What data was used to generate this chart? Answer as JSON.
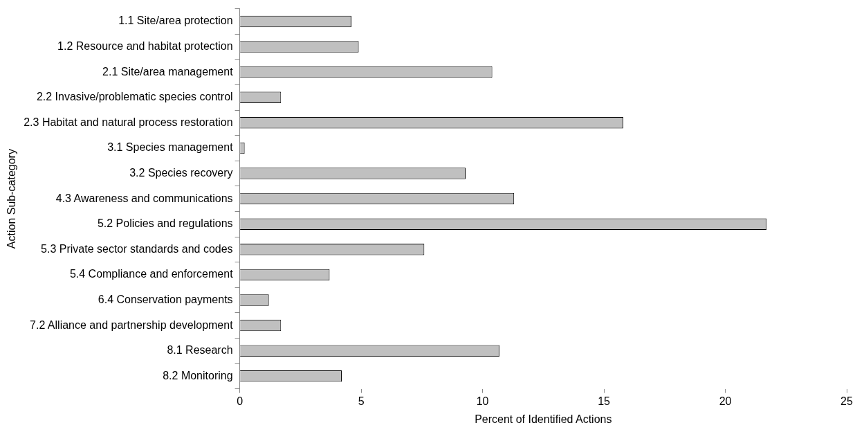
{
  "chart_data": {
    "type": "bar",
    "orientation": "horizontal",
    "xlabel": "Percent of Identified Actions",
    "ylabel": "Action Sub-category",
    "categories": [
      "1.1 Site/area protection",
      "1.2 Resource and habitat protection",
      "2.1 Site/area management",
      "2.2 Invasive/problematic species control",
      "2.3 Habitat and natural process restoration",
      "3.1 Species management",
      "3.2 Species recovery",
      "4.3 Awareness and communications",
      "5.2 Policies and regulations",
      "5.3 Private sector standards and codes",
      "5.4 Compliance and enforcement",
      "6.4 Conservation payments",
      "7.2 Alliance and partnership development",
      "8.1 Research",
      "8.2 Monitoring"
    ],
    "values": [
      4.6,
      4.9,
      10.4,
      1.7,
      15.8,
      0.2,
      9.3,
      11.3,
      21.7,
      7.6,
      3.7,
      1.2,
      1.7,
      10.7,
      4.2
    ],
    "color": "#c0c0c0",
    "xlim": [
      0,
      25
    ],
    "xticks": [
      0,
      5,
      10,
      15,
      20,
      25
    ],
    "grid": false,
    "legend": false
  }
}
